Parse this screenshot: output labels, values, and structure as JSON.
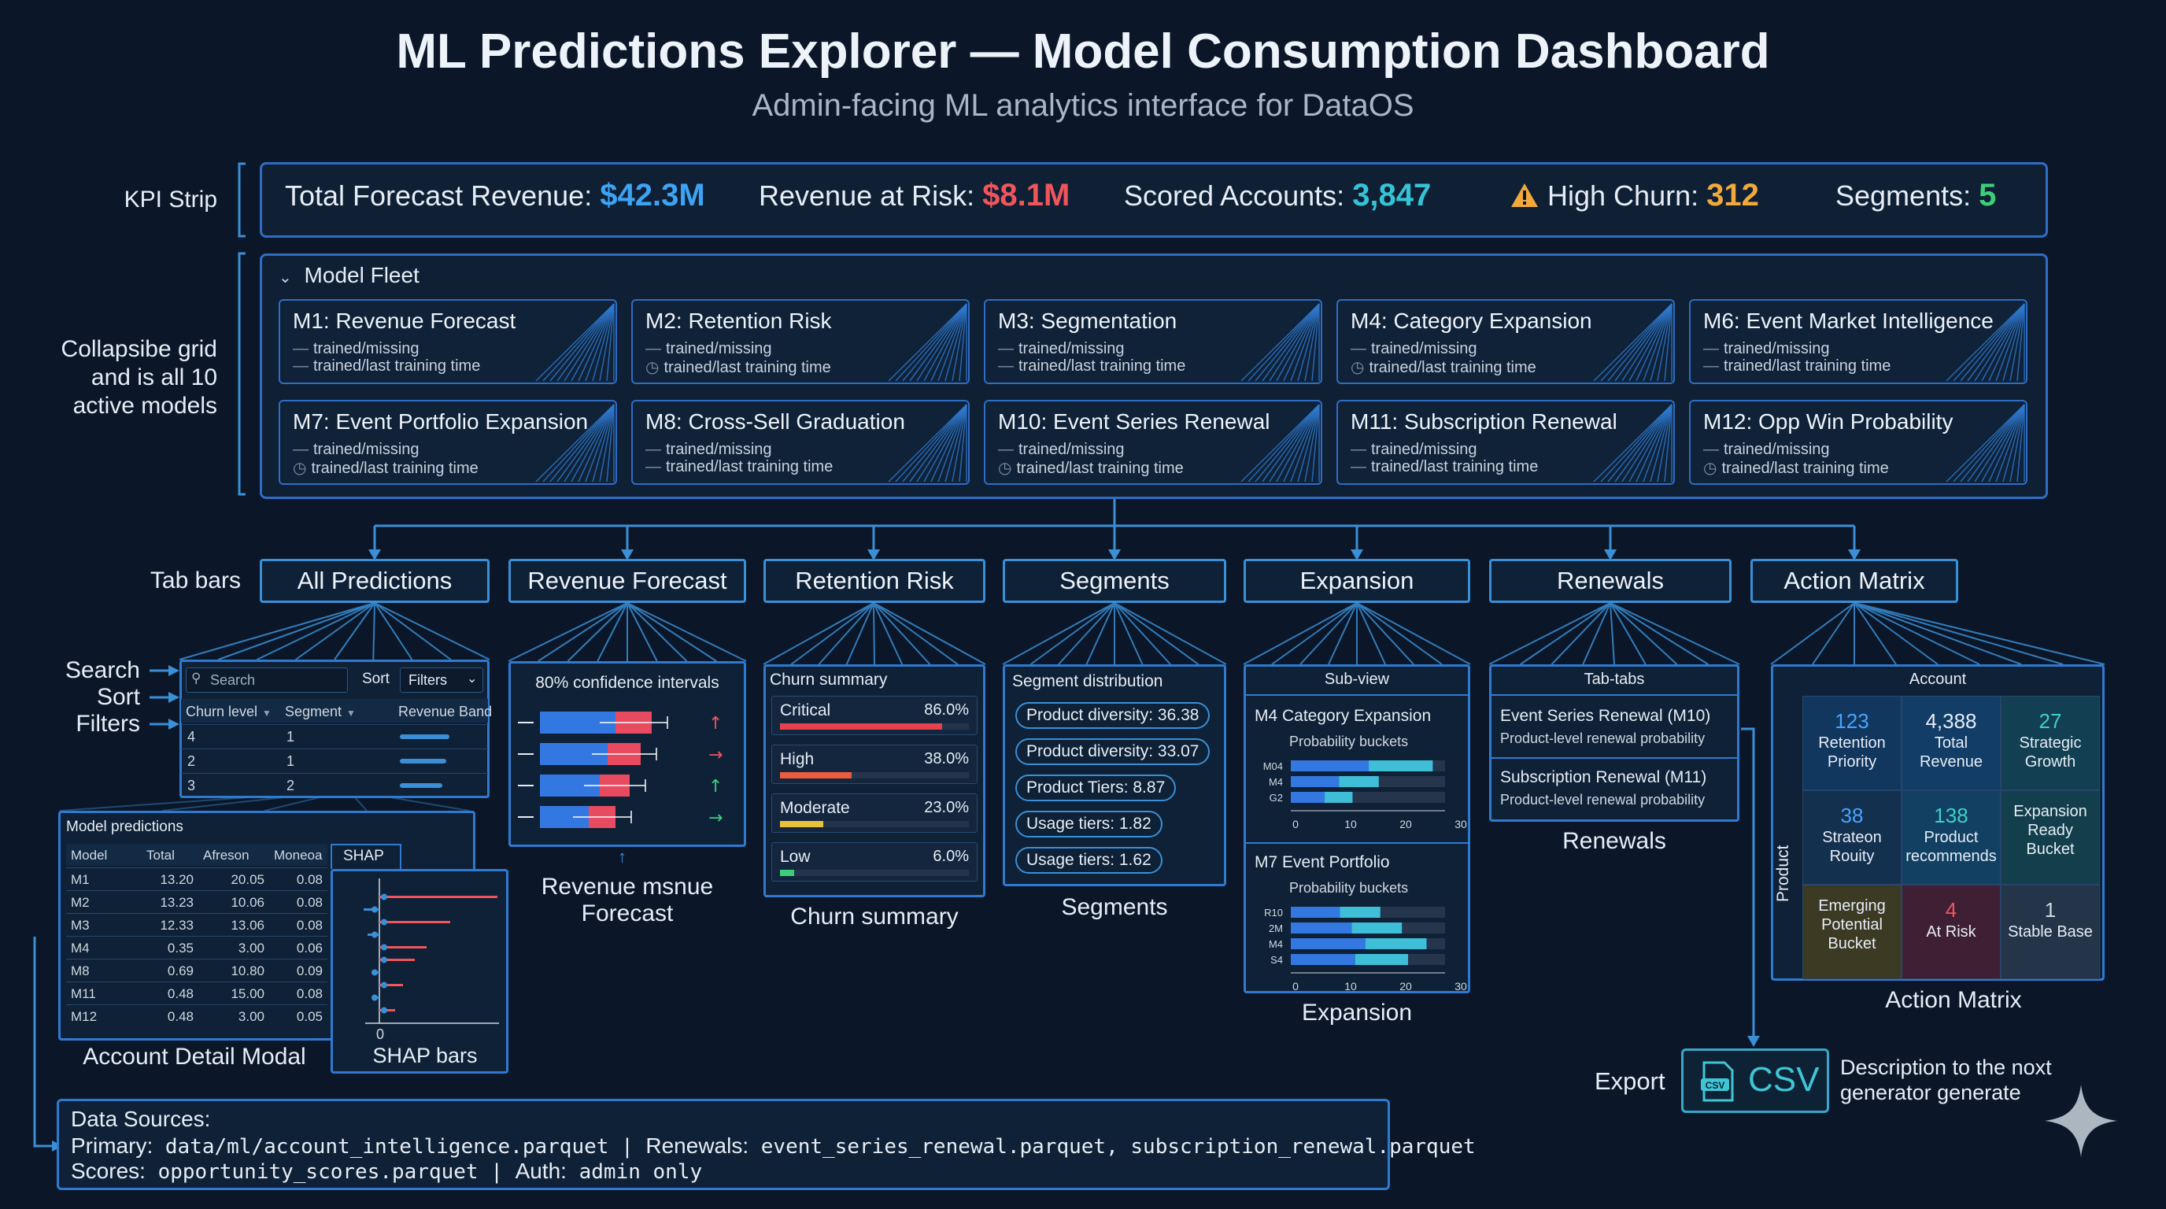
{
  "title": "ML Predictions Explorer — Model Consumption Dashboard",
  "subtitle": "Admin-facing ML analytics interface for DataOS",
  "side_labels": {
    "kpi_strip": "KPI Strip",
    "grid": [
      "Collapsibe grid",
      "and is all 10",
      "active models"
    ],
    "tab_bars": "Tab bars",
    "search": "Search",
    "sort": "Sort",
    "filters": "Filters"
  },
  "kpis": [
    {
      "label": "Total Forecast Revenue:",
      "value": "$42.3M",
      "color": "#3da3f5"
    },
    {
      "label": "Revenue at Risk:",
      "value": "$8.1M",
      "color": "#f0555c"
    },
    {
      "label": "Scored Accounts:",
      "value": "3,847",
      "color": "#36c3d6"
    },
    {
      "label": "High Churn:",
      "value": "312",
      "color": "#f2a93b",
      "icon": "warning-icon"
    },
    {
      "label": "Segments:",
      "value": "5",
      "color": "#3ccf7a"
    }
  ],
  "fleet": {
    "header": "Model Fleet",
    "models": [
      {
        "name": "M1: Revenue Forecast",
        "l1": "trained/missing",
        "l2": "trained/last training time"
      },
      {
        "name": "M2: Retention Risk",
        "l1": "trained/missing",
        "l2": "trained/last training time"
      },
      {
        "name": "M3: Segmentation",
        "l1": "trained/missing",
        "l2": "trained/last training time"
      },
      {
        "name": "M4: Category Expansion",
        "l1": "trained/missing",
        "l2": "trained/last training time"
      },
      {
        "name": "M6: Event Market Intelligence",
        "l1": "trained/missing",
        "l2": "trained/last training time"
      },
      {
        "name": "M7: Event Portfolio Expansion",
        "l1": "trained/missing",
        "l2": "trained/last training time"
      },
      {
        "name": "M8: Cross-Sell Graduation",
        "l1": "trained/missing",
        "l2": "trained/last training time"
      },
      {
        "name": "M10: Event Series Renewal",
        "l1": "trained/missing",
        "l2": "trained/last training time"
      },
      {
        "name": "M11: Subscription Renewal",
        "l1": "trained/missing",
        "l2": "trained/last training time"
      },
      {
        "name": "M12: Opp Win Probability",
        "l1": "trained/missing",
        "l2": "trained/last training time"
      }
    ]
  },
  "tabs": [
    "All Predictions",
    "Revenue Forecast",
    "Retention Risk",
    "Segments",
    "Expansion",
    "Renewals",
    "Action Matrix"
  ],
  "all_predictions": {
    "search_placeholder": "Search",
    "sort": "Sort",
    "filters": "Filters",
    "columns": [
      "Churn level",
      "Segment",
      "Revenue Band"
    ],
    "rows": [
      [
        "4",
        "1"
      ],
      [
        "2",
        "1"
      ],
      [
        "3",
        "2"
      ]
    ],
    "band_fill": [
      0.7,
      0.65,
      0.6
    ]
  },
  "model_predictions": {
    "title": "Model predictions",
    "columns": [
      "Model",
      "Total",
      "Afreson",
      "Moneoa"
    ],
    "rows": [
      [
        "M1",
        "13.20",
        "20.05",
        "0.08"
      ],
      [
        "M2",
        "13.23",
        "10.06",
        "0.08"
      ],
      [
        "M3",
        "12.33",
        "13.06",
        "0.08"
      ],
      [
        "M4",
        "0.35",
        "3.00",
        "0.06"
      ],
      [
        "M8",
        "0.69",
        "10.80",
        "0.09"
      ],
      [
        "M11",
        "0.48",
        "15.00",
        "0.08"
      ],
      [
        "M12",
        "0.48",
        "3.00",
        "0.05"
      ]
    ],
    "caption": "Account Detail Modal"
  },
  "shap": {
    "tab": "SHAP",
    "zero": "0",
    "caption": "SHAP bars"
  },
  "revenue_forecast": {
    "title": "80% confidence intervals",
    "caption": [
      "Revenue msnue",
      "Forecast"
    ],
    "arrows": [
      "↑",
      "→",
      "↑",
      "→"
    ],
    "arrow_colors": [
      "#f0555c",
      "#f0555c",
      "#3ccf7a",
      "#3ccf7a"
    ]
  },
  "churn": {
    "title": "Churn summary",
    "levels": [
      {
        "name": "Critical",
        "pct": "86.0%",
        "frac": 0.86,
        "color": "#e8414e"
      },
      {
        "name": "High",
        "pct": "38.0%",
        "frac": 0.38,
        "color": "#ef5a3c"
      },
      {
        "name": "Moderate",
        "pct": "23.0%",
        "frac": 0.23,
        "color": "#e8c23a"
      },
      {
        "name": "Low",
        "pct": "6.0%",
        "frac": 0.06,
        "color": "#3ccf7a"
      }
    ],
    "caption": "Churn summary"
  },
  "segments": {
    "title": "Segment distribution",
    "pills": [
      "Product diversity: 36.38",
      "Product diversity: 33.07",
      "Product Tiers: 8.87",
      "Usage tiers: 1.82",
      "Usage tiers: 1.62"
    ],
    "caption": "Segments"
  },
  "expansion": {
    "header": "Sub-view",
    "m4_title": "M4 Category Expansion",
    "m7_title": "M7 Event Portfolio",
    "buckets_label": "Probability buckets",
    "m4_rows": [
      "M04",
      "M4",
      "G2"
    ],
    "m7_rows": [
      "R10",
      "2M",
      "M4",
      "S4"
    ],
    "ticks": [
      "0",
      "10",
      "20",
      "30"
    ],
    "caption": "Expansion"
  },
  "renewals": {
    "header": "Tab-tabs",
    "items": [
      {
        "title": "Event Series Renewal (M10)",
        "sub": "Product-level renewal probability"
      },
      {
        "title": "Subscription Renewal (M11)",
        "sub": "Product-level renewal probability"
      }
    ],
    "caption": "Renewals"
  },
  "action_matrix": {
    "header": "Account",
    "axis": "Product",
    "cells": [
      {
        "n": "123",
        "t": [
          "Retention",
          "Priority"
        ],
        "bg": "#12375f",
        "nc": "#4aa3ff"
      },
      {
        "n": "4,388",
        "t": [
          "Total",
          "Revenue"
        ],
        "bg": "#123d66",
        "nc": "#e6edf6"
      },
      {
        "n": "27",
        "t": [
          "Strategic",
          "Growth"
        ],
        "bg": "#123f52",
        "nc": "#3fd0c4"
      },
      {
        "n": "38",
        "t": [
          "Strateon",
          "Rouity"
        ],
        "bg": "#13304f",
        "nc": "#4aa3ff"
      },
      {
        "n": "138",
        "t": [
          "Product",
          "recommends"
        ],
        "bg": "#124063",
        "nc": "#3fd0c4"
      },
      {
        "n": "",
        "t": [
          "Expansion",
          "Ready",
          "Bucket"
        ],
        "bg": "#133f4c",
        "nc": "#e6edf6"
      },
      {
        "n": "",
        "t": [
          "Emerging",
          "Potential",
          "Bucket"
        ],
        "bg": "#3d3a24",
        "nc": "#e6edf6"
      },
      {
        "n": "4",
        "t": [
          "At Risk"
        ],
        "bg": "#3f1f33",
        "nc": "#f0555c"
      },
      {
        "n": "1",
        "t": [
          "Stable Base"
        ],
        "bg": "#243449",
        "nc": "#cfd8e3"
      }
    ],
    "caption": "Action Matrix"
  },
  "export": {
    "label": "Export",
    "button": "CSV",
    "desc": [
      "Description to the noxt",
      "generator generate"
    ]
  },
  "data_sources": {
    "title": "Data Sources:",
    "primary_label": "Primary:",
    "primary": "data/ml/account_intelligence.parquet",
    "renewals_label": "Renewals:",
    "renewals": "event_series_renewal.parquet, subscription_renewal.parquet",
    "scores_label": "Scores:",
    "scores": "opportunity_scores.parquet",
    "auth_label": "Auth:",
    "auth": "admin only"
  }
}
